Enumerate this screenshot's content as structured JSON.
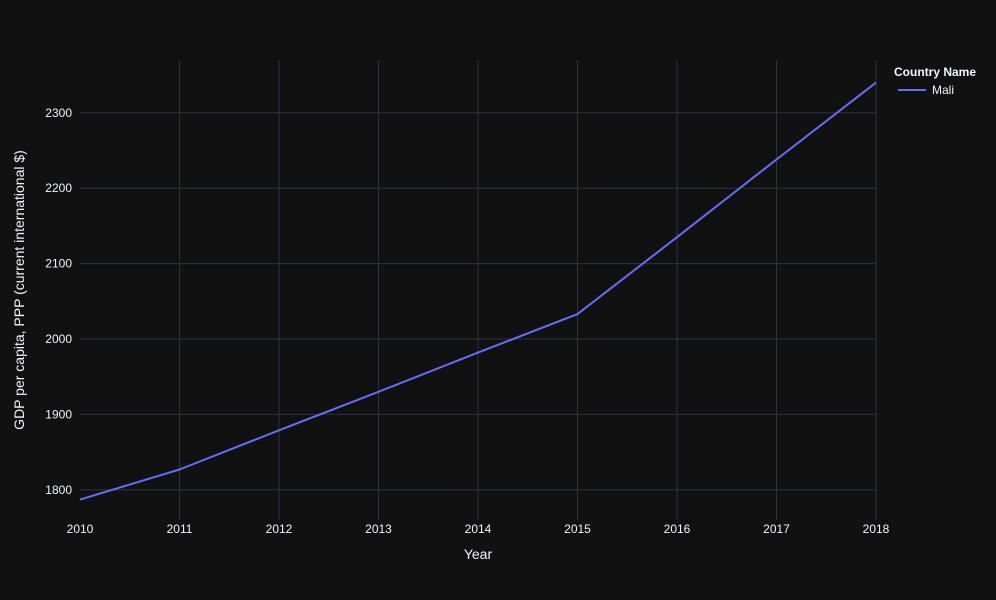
{
  "chart_data": {
    "type": "line",
    "title": "",
    "xlabel": "Year",
    "ylabel": "GDP per capita, PPP (current international $)",
    "x": [
      2010,
      2011,
      2012,
      2013,
      2014,
      2015,
      2016,
      2017,
      2018
    ],
    "xlim": [
      2010,
      2018
    ],
    "ylim": [
      1760,
      2370
    ],
    "x_ticks": [
      2010,
      2011,
      2012,
      2013,
      2014,
      2015,
      2016,
      2017,
      2018
    ],
    "y_ticks": [
      1800,
      1900,
      2000,
      2100,
      2200,
      2300
    ],
    "grid": true,
    "legend": {
      "title": "Country Name",
      "placement": "top-right"
    },
    "series": [
      {
        "name": "Mali",
        "color": "#636efa",
        "values": [
          1787,
          1827,
          1879,
          1930,
          1982,
          2033,
          2135,
          2238,
          2340
        ]
      }
    ]
  },
  "colors": {
    "background": "#111111",
    "grid": "#283442",
    "text": "#f2f5fa"
  }
}
